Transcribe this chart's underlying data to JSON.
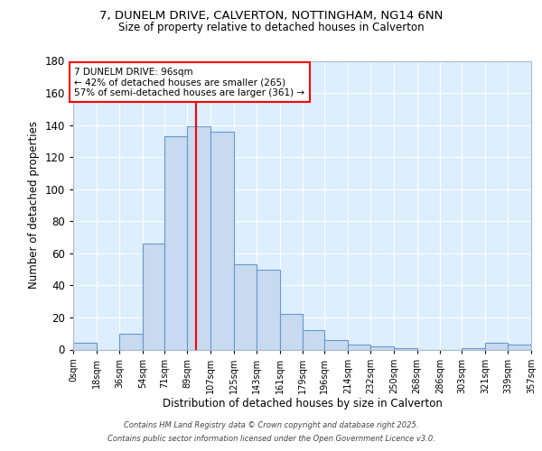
{
  "title_line1": "7, DUNELM DRIVE, CALVERTON, NOTTINGHAM, NG14 6NN",
  "title_line2": "Size of property relative to detached houses in Calverton",
  "xlabel": "Distribution of detached houses by size in Calverton",
  "ylabel": "Number of detached properties",
  "bin_edges": [
    0,
    18,
    36,
    54,
    71,
    89,
    107,
    125,
    143,
    161,
    179,
    196,
    214,
    232,
    250,
    268,
    286,
    303,
    321,
    339,
    357
  ],
  "bar_heights": [
    4,
    0,
    10,
    66,
    133,
    139,
    136,
    53,
    50,
    22,
    12,
    6,
    3,
    2,
    1,
    0,
    0,
    1,
    4,
    3
  ],
  "tick_labels": [
    "0sqm",
    "18sqm",
    "36sqm",
    "54sqm",
    "71sqm",
    "89sqm",
    "107sqm",
    "125sqm",
    "143sqm",
    "161sqm",
    "179sqm",
    "196sqm",
    "214sqm",
    "232sqm",
    "250sqm",
    "268sqm",
    "286sqm",
    "303sqm",
    "321sqm",
    "339sqm",
    "357sqm"
  ],
  "bar_color": "#c8daf0",
  "bar_edge_color": "#6699cc",
  "vline_x": 96,
  "vline_color": "red",
  "annotation_text": "7 DUNELM DRIVE: 96sqm\n← 42% of detached houses are smaller (265)\n57% of semi-detached houses are larger (361) →",
  "annotation_box_color": "white",
  "annotation_box_edge": "red",
  "bg_color": "#ffffff",
  "plot_bg_color": "#ddeeff",
  "footer_line1": "Contains HM Land Registry data © Crown copyright and database right 2025.",
  "footer_line2": "Contains public sector information licensed under the Open Government Licence v3.0.",
  "ylim": [
    0,
    180
  ],
  "yticks": [
    0,
    20,
    40,
    60,
    80,
    100,
    120,
    140,
    160,
    180
  ]
}
